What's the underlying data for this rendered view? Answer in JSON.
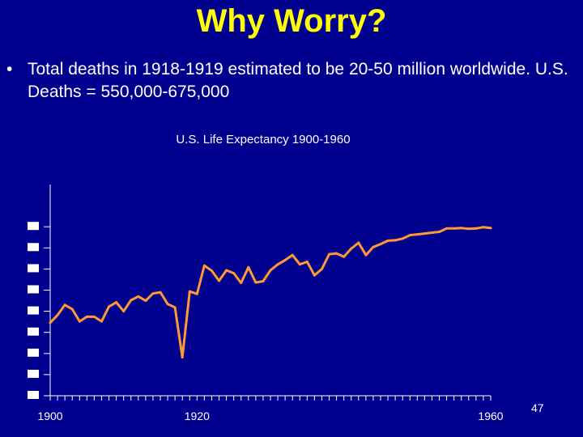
{
  "slide": {
    "title": "Why Worry?",
    "bullet": "Total deaths in 1918-1919 estimated to be 20-50 million worldwide.  U.S. Deaths = 550,000-675,000",
    "page_number": "47"
  },
  "colors": {
    "background": "#00008f",
    "title": "#ffff00",
    "text": "#ffffff",
    "line": "#ff9933",
    "axis": "#ffffff"
  },
  "chart_data": {
    "type": "line",
    "title": "U.S.  Life Expectancy 1900-1960",
    "xlabel": "",
    "ylabel": "",
    "x": [
      1900,
      1901,
      1902,
      1903,
      1904,
      1905,
      1906,
      1907,
      1908,
      1909,
      1910,
      1911,
      1912,
      1913,
      1914,
      1915,
      1916,
      1917,
      1918,
      1919,
      1920,
      1921,
      1922,
      1923,
      1924,
      1925,
      1926,
      1927,
      1928,
      1929,
      1930,
      1931,
      1932,
      1933,
      1934,
      1935,
      1936,
      1937,
      1938,
      1939,
      1940,
      1941,
      1942,
      1943,
      1944,
      1945,
      1946,
      1947,
      1948,
      1949,
      1950,
      1951,
      1952,
      1953,
      1954,
      1955,
      1956,
      1957,
      1958,
      1959,
      1960
    ],
    "series": [
      {
        "values": [
          47.3,
          49.1,
          51.5,
          50.5,
          47.6,
          48.7,
          48.7,
          47.6,
          51.1,
          52.1,
          50.0,
          52.6,
          53.5,
          52.5,
          54.2,
          54.5,
          51.7,
          50.9,
          39.1,
          54.7,
          54.1,
          60.8,
          59.6,
          57.2,
          59.7,
          59.0,
          56.7,
          60.4,
          56.8,
          57.1,
          59.7,
          61.1,
          62.1,
          63.3,
          61.1,
          61.7,
          58.5,
          60.0,
          63.5,
          63.7,
          62.9,
          64.8,
          66.2,
          63.3,
          65.2,
          65.9,
          66.7,
          66.8,
          67.2,
          68.0,
          68.2,
          68.4,
          68.6,
          68.8,
          69.6,
          69.6,
          69.7,
          69.5,
          69.6,
          69.9,
          69.7
        ]
      }
    ],
    "xlim": [
      1900,
      1960
    ],
    "ylim": [
      30,
      80
    ],
    "y_tick_values": [
      30,
      35,
      40,
      45,
      50,
      55,
      60,
      65,
      70
    ],
    "x_tick_labels": [
      {
        "value": 1900,
        "label": "1900"
      },
      {
        "value": 1920,
        "label": "1920"
      },
      {
        "value": 1960,
        "label": "1960"
      }
    ],
    "grid": false,
    "legend": "none"
  }
}
